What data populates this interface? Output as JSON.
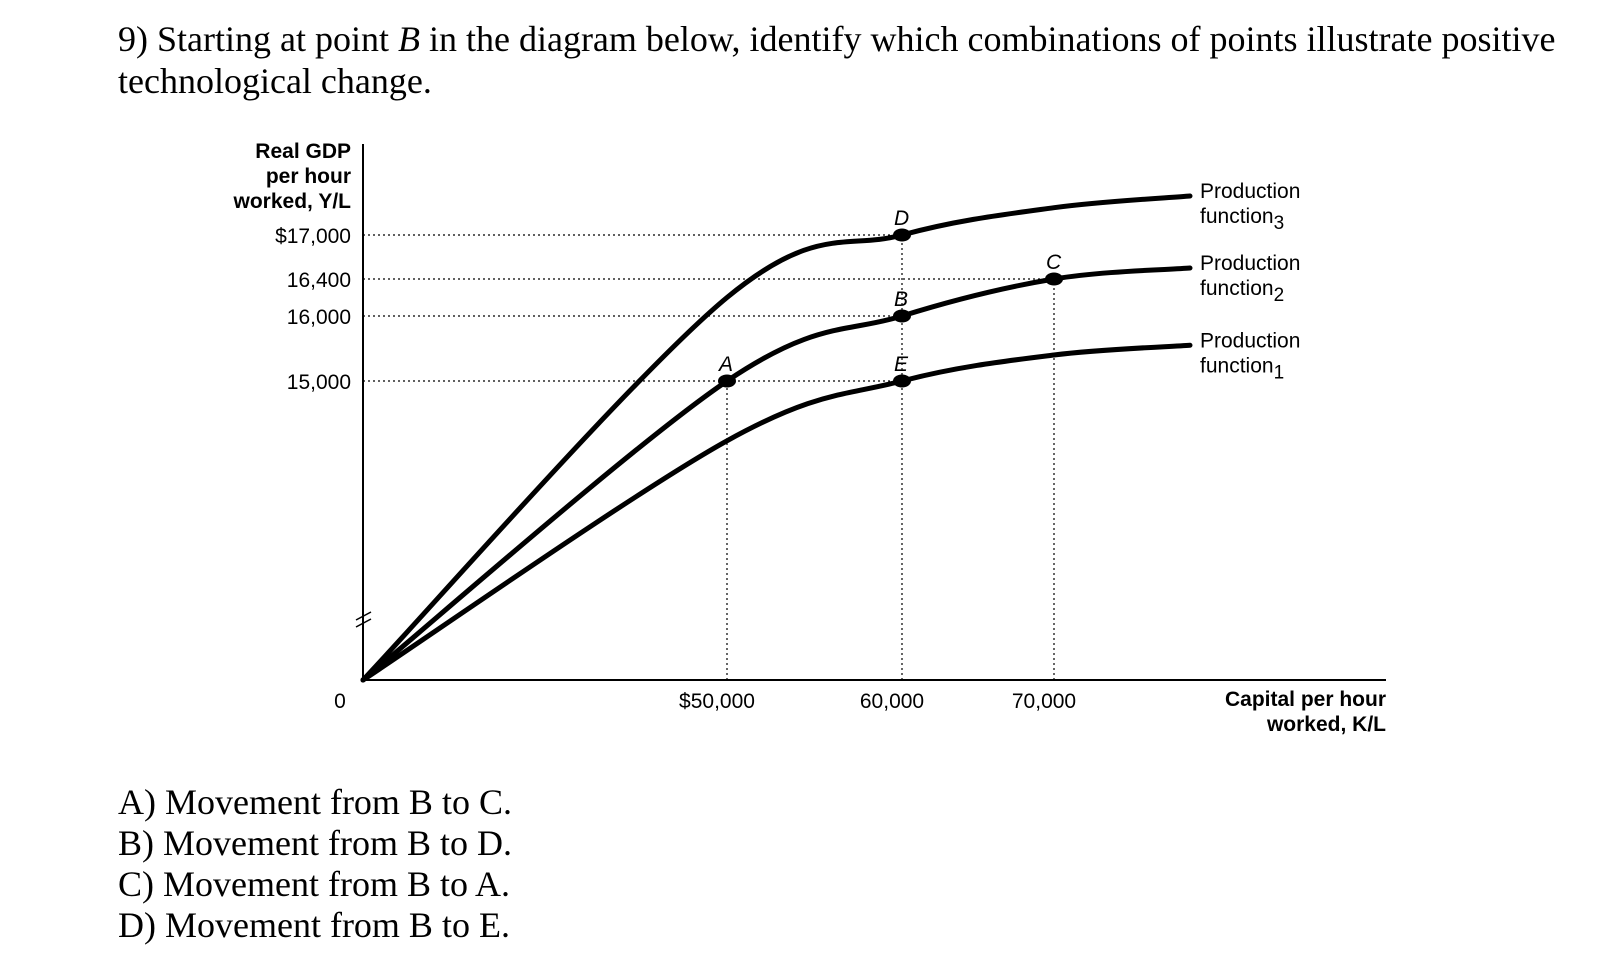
{
  "question": {
    "number": "9)",
    "text_before": "Starting at point",
    "point": "B",
    "text_after": "in the diagram below, identify which combinations of points illustrate positive technological change."
  },
  "choices": [
    "A) Movement from B to C.",
    "B) Movement from B to D.",
    "C) Movement from B to A.",
    "D) Movement from B to E."
  ],
  "chart_data": {
    "type": "line",
    "ylabel_lines": [
      "Real GDP",
      "per hour",
      "worked, Y/L"
    ],
    "xlabel_lines": [
      "Capital per hour",
      "worked, K/L"
    ],
    "origin_label": "0",
    "y_ticks": [
      {
        "value": 17000,
        "label": "$17,000"
      },
      {
        "value": 16400,
        "label": "16,400"
      },
      {
        "value": 16000,
        "label": "16,000"
      },
      {
        "value": 15000,
        "label": "15,000"
      }
    ],
    "x_ticks": [
      {
        "value": 50000,
        "label": "$50,000"
      },
      {
        "value": 60000,
        "label": "60,000"
      },
      {
        "value": 70000,
        "label": "70,000"
      }
    ],
    "y_axis_break": true,
    "series": [
      {
        "name": "Production function3",
        "label_main": "Production",
        "label_line2": "function",
        "label_sub": "3",
        "x": [
          0,
          50000,
          60000,
          70000,
          80000
        ],
        "y": [
          11000,
          16200,
          17000,
          17350,
          17500
        ]
      },
      {
        "name": "Production function2",
        "label_main": "Production",
        "label_line2": "function",
        "label_sub": "2",
        "x": [
          0,
          50000,
          60000,
          70000,
          80000
        ],
        "y": [
          11000,
          15000,
          16000,
          16400,
          16550
        ]
      },
      {
        "name": "Production function1",
        "label_main": "Production",
        "label_line2": "function",
        "label_sub": "1",
        "x": [
          0,
          50000,
          60000,
          70000,
          80000
        ],
        "y": [
          11000,
          14200,
          15000,
          15400,
          15550
        ]
      }
    ],
    "points": [
      {
        "label": "A",
        "x": 50000,
        "y": 15000
      },
      {
        "label": "B",
        "x": 60000,
        "y": 16000
      },
      {
        "label": "C",
        "x": 70000,
        "y": 16400
      },
      {
        "label": "D",
        "x": 60000,
        "y": 17000
      },
      {
        "label": "E",
        "x": 60000,
        "y": 15000
      }
    ]
  }
}
